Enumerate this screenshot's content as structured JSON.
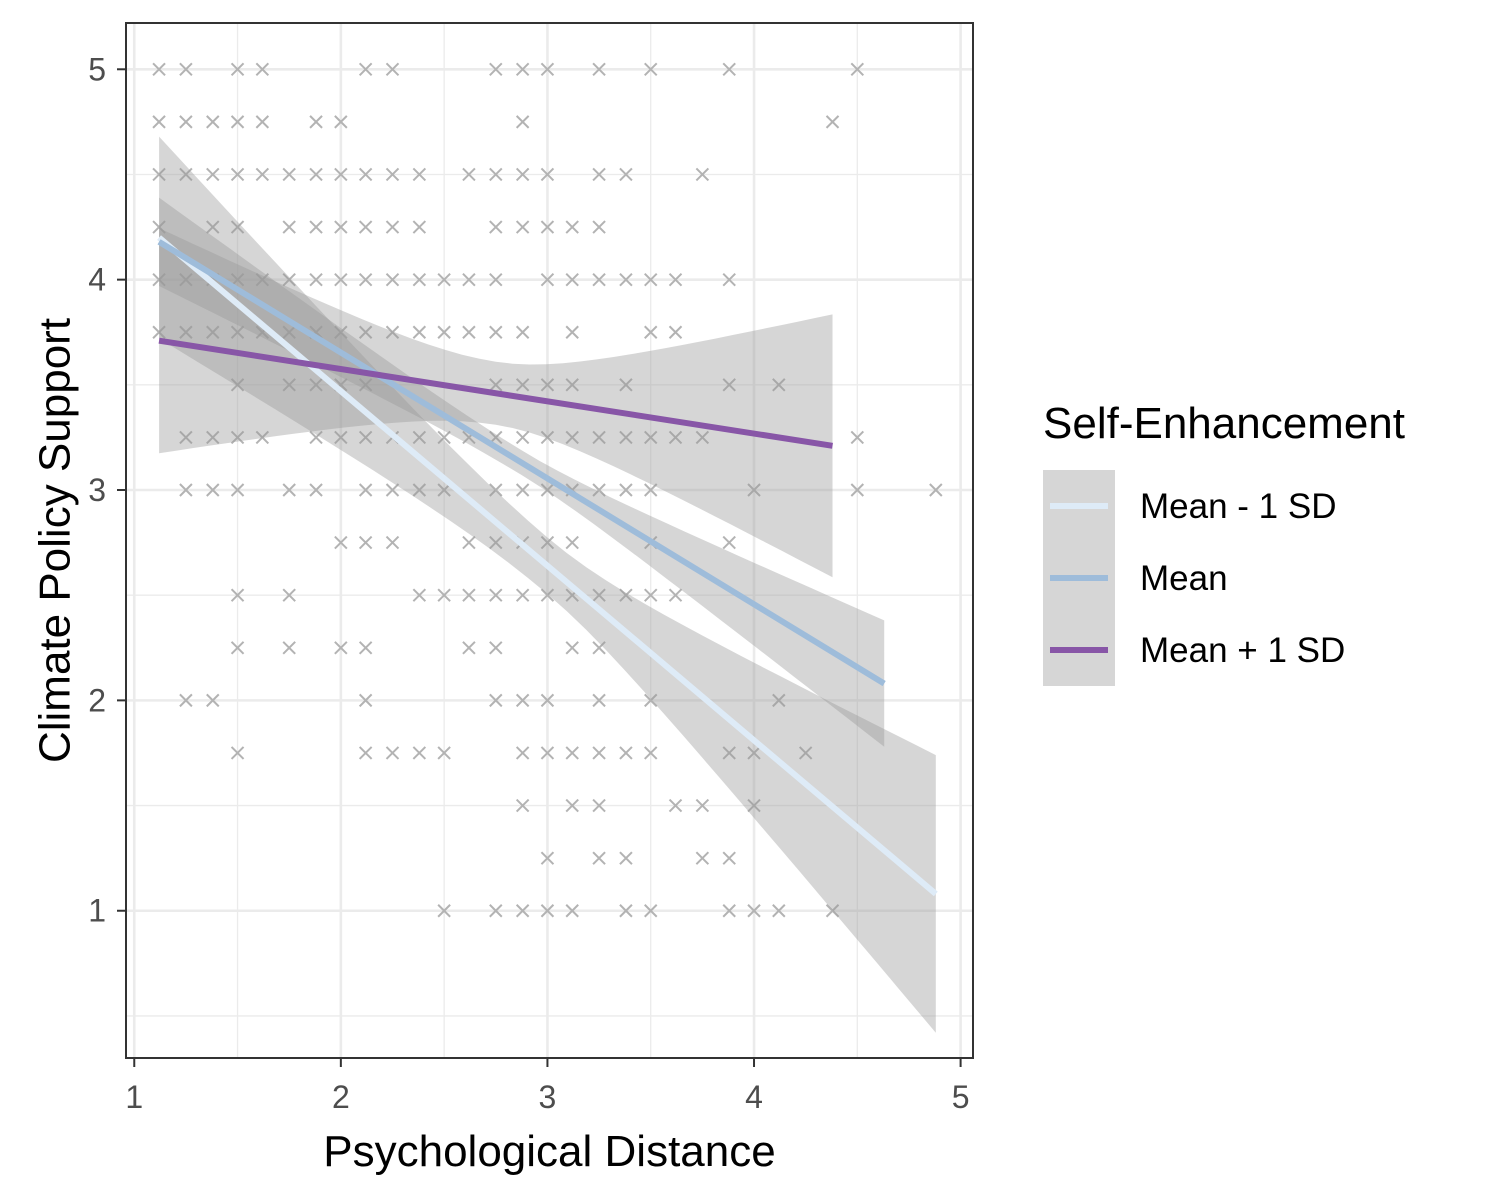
{
  "chart_data": {
    "type": "scatter",
    "title": "",
    "xlabel": "Psychological Distance",
    "ylabel": "Climate Policy Support",
    "xlim": [
      0.96,
      5.06
    ],
    "ylim": [
      0.3,
      5.22
    ],
    "x_ticks": [
      1,
      2,
      3,
      4,
      5
    ],
    "y_ticks": [
      1,
      2,
      3,
      4,
      5
    ],
    "x_tick_labels": [
      "1",
      "2",
      "3",
      "4",
      "5"
    ],
    "y_tick_labels": [
      "1",
      "2",
      "3",
      "4",
      "5"
    ],
    "grid": true,
    "point_marker": "x",
    "point_color": "#b3b3b3",
    "ribbon_color": "#999999",
    "legend": {
      "title": "Self-Enhancement",
      "position": "right"
    },
    "series": [
      {
        "name": "Mean - 1 SD",
        "color": "#deebf7",
        "x": [
          1.12,
          4.88
        ],
        "y": [
          4.2,
          1.08
        ],
        "ci_lower": [
          3.72,
          0.42
        ],
        "ci_upper": [
          4.68,
          1.74
        ]
      },
      {
        "name": "Mean",
        "color": "#9ebcda",
        "x": [
          1.12,
          4.63
        ],
        "y": [
          4.18,
          2.08
        ],
        "ci_lower": [
          3.98,
          1.78
        ],
        "ci_upper": [
          4.4,
          2.38
        ]
      },
      {
        "name": "Mean + 1 SD",
        "color": "#8856a7",
        "x": [
          1.12,
          4.38
        ],
        "y": [
          3.71,
          3.21
        ],
        "ci_lower": [
          3.18,
          2.59
        ],
        "ci_upper": [
          4.25,
          3.84
        ]
      }
    ],
    "points": [
      [
        1.12,
        5
      ],
      [
        1.25,
        5
      ],
      [
        1.5,
        5
      ],
      [
        1.62,
        5
      ],
      [
        2.12,
        5
      ],
      [
        2.25,
        5
      ],
      [
        2.75,
        5
      ],
      [
        2.88,
        5
      ],
      [
        3,
        5
      ],
      [
        3.25,
        5
      ],
      [
        3.5,
        5
      ],
      [
        3.88,
        5
      ],
      [
        4.5,
        5
      ],
      [
        1.12,
        4.75
      ],
      [
        1.25,
        4.75
      ],
      [
        1.38,
        4.75
      ],
      [
        1.5,
        4.75
      ],
      [
        1.62,
        4.75
      ],
      [
        1.88,
        4.75
      ],
      [
        2,
        4.75
      ],
      [
        2.88,
        4.75
      ],
      [
        4.38,
        4.75
      ],
      [
        1.12,
        4.5
      ],
      [
        1.25,
        4.5
      ],
      [
        1.38,
        4.5
      ],
      [
        1.5,
        4.5
      ],
      [
        1.62,
        4.5
      ],
      [
        1.75,
        4.5
      ],
      [
        1.88,
        4.5
      ],
      [
        2,
        4.5
      ],
      [
        2.12,
        4.5
      ],
      [
        2.25,
        4.5
      ],
      [
        2.38,
        4.5
      ],
      [
        2.62,
        4.5
      ],
      [
        2.75,
        4.5
      ],
      [
        2.88,
        4.5
      ],
      [
        3,
        4.5
      ],
      [
        3.25,
        4.5
      ],
      [
        3.38,
        4.5
      ],
      [
        3.75,
        4.5
      ],
      [
        1.12,
        4.25
      ],
      [
        1.38,
        4.25
      ],
      [
        1.5,
        4.25
      ],
      [
        1.75,
        4.25
      ],
      [
        1.88,
        4.25
      ],
      [
        2,
        4.25
      ],
      [
        2.12,
        4.25
      ],
      [
        2.25,
        4.25
      ],
      [
        2.38,
        4.25
      ],
      [
        2.75,
        4.25
      ],
      [
        2.88,
        4.25
      ],
      [
        3,
        4.25
      ],
      [
        3.12,
        4.25
      ],
      [
        3.25,
        4.25
      ],
      [
        1.12,
        4
      ],
      [
        1.25,
        4
      ],
      [
        1.38,
        4
      ],
      [
        1.5,
        4
      ],
      [
        1.62,
        4
      ],
      [
        1.75,
        4
      ],
      [
        1.88,
        4
      ],
      [
        2,
        4
      ],
      [
        2.12,
        4
      ],
      [
        2.25,
        4
      ],
      [
        2.38,
        4
      ],
      [
        2.5,
        4
      ],
      [
        2.62,
        4
      ],
      [
        2.75,
        4
      ],
      [
        3,
        4
      ],
      [
        3.12,
        4
      ],
      [
        3.25,
        4
      ],
      [
        3.38,
        4
      ],
      [
        3.5,
        4
      ],
      [
        3.62,
        4
      ],
      [
        3.88,
        4
      ],
      [
        1.12,
        3.75
      ],
      [
        1.25,
        3.75
      ],
      [
        1.38,
        3.75
      ],
      [
        1.5,
        3.75
      ],
      [
        1.62,
        3.75
      ],
      [
        1.75,
        3.75
      ],
      [
        1.88,
        3.75
      ],
      [
        2,
        3.75
      ],
      [
        2.12,
        3.75
      ],
      [
        2.25,
        3.75
      ],
      [
        2.38,
        3.75
      ],
      [
        2.5,
        3.75
      ],
      [
        2.62,
        3.75
      ],
      [
        2.75,
        3.75
      ],
      [
        2.88,
        3.75
      ],
      [
        3.12,
        3.75
      ],
      [
        3.5,
        3.75
      ],
      [
        3.62,
        3.75
      ],
      [
        1.5,
        3.5
      ],
      [
        1.75,
        3.5
      ],
      [
        1.88,
        3.5
      ],
      [
        2,
        3.5
      ],
      [
        2.12,
        3.5
      ],
      [
        2.75,
        3.5
      ],
      [
        2.88,
        3.5
      ],
      [
        3,
        3.5
      ],
      [
        3.12,
        3.5
      ],
      [
        3.38,
        3.5
      ],
      [
        3.88,
        3.5
      ],
      [
        4.12,
        3.5
      ],
      [
        1.25,
        3.25
      ],
      [
        1.38,
        3.25
      ],
      [
        1.5,
        3.25
      ],
      [
        1.62,
        3.25
      ],
      [
        1.88,
        3.25
      ],
      [
        2,
        3.25
      ],
      [
        2.12,
        3.25
      ],
      [
        2.25,
        3.25
      ],
      [
        2.38,
        3.25
      ],
      [
        2.5,
        3.25
      ],
      [
        2.62,
        3.25
      ],
      [
        2.75,
        3.25
      ],
      [
        2.88,
        3.25
      ],
      [
        3,
        3.25
      ],
      [
        3.12,
        3.25
      ],
      [
        3.25,
        3.25
      ],
      [
        3.38,
        3.25
      ],
      [
        3.5,
        3.25
      ],
      [
        3.62,
        3.25
      ],
      [
        3.75,
        3.25
      ],
      [
        4.5,
        3.25
      ],
      [
        1.25,
        3
      ],
      [
        1.38,
        3
      ],
      [
        1.5,
        3
      ],
      [
        1.75,
        3
      ],
      [
        1.88,
        3
      ],
      [
        2.12,
        3
      ],
      [
        2.25,
        3
      ],
      [
        2.38,
        3
      ],
      [
        2.5,
        3
      ],
      [
        2.75,
        3
      ],
      [
        2.88,
        3
      ],
      [
        3,
        3
      ],
      [
        3.12,
        3
      ],
      [
        3.25,
        3
      ],
      [
        3.38,
        3
      ],
      [
        3.5,
        3
      ],
      [
        4,
        3
      ],
      [
        4.5,
        3
      ],
      [
        4.88,
        3
      ],
      [
        2,
        2.75
      ],
      [
        2.12,
        2.75
      ],
      [
        2.25,
        2.75
      ],
      [
        2.62,
        2.75
      ],
      [
        2.75,
        2.75
      ],
      [
        2.88,
        2.75
      ],
      [
        3,
        2.75
      ],
      [
        3.12,
        2.75
      ],
      [
        3.5,
        2.75
      ],
      [
        3.88,
        2.75
      ],
      [
        1.5,
        2.5
      ],
      [
        1.75,
        2.5
      ],
      [
        2.38,
        2.5
      ],
      [
        2.5,
        2.5
      ],
      [
        2.62,
        2.5
      ],
      [
        2.75,
        2.5
      ],
      [
        2.88,
        2.5
      ],
      [
        3,
        2.5
      ],
      [
        3.12,
        2.5
      ],
      [
        3.25,
        2.5
      ],
      [
        3.38,
        2.5
      ],
      [
        3.5,
        2.5
      ],
      [
        3.62,
        2.5
      ],
      [
        1.5,
        2.25
      ],
      [
        1.75,
        2.25
      ],
      [
        2,
        2.25
      ],
      [
        2.12,
        2.25
      ],
      [
        2.62,
        2.25
      ],
      [
        2.75,
        2.25
      ],
      [
        3.12,
        2.25
      ],
      [
        3.25,
        2.25
      ],
      [
        1.25,
        2
      ],
      [
        1.38,
        2
      ],
      [
        2.12,
        2
      ],
      [
        2.75,
        2
      ],
      [
        2.88,
        2
      ],
      [
        3,
        2
      ],
      [
        3.25,
        2
      ],
      [
        3.5,
        2
      ],
      [
        4.12,
        2
      ],
      [
        1.5,
        1.75
      ],
      [
        2.12,
        1.75
      ],
      [
        2.25,
        1.75
      ],
      [
        2.38,
        1.75
      ],
      [
        2.5,
        1.75
      ],
      [
        2.88,
        1.75
      ],
      [
        3,
        1.75
      ],
      [
        3.12,
        1.75
      ],
      [
        3.25,
        1.75
      ],
      [
        3.38,
        1.75
      ],
      [
        3.5,
        1.75
      ],
      [
        3.88,
        1.75
      ],
      [
        4,
        1.75
      ],
      [
        4.25,
        1.75
      ],
      [
        2.88,
        1.5
      ],
      [
        3.12,
        1.5
      ],
      [
        3.25,
        1.5
      ],
      [
        3.62,
        1.5
      ],
      [
        3.75,
        1.5
      ],
      [
        4,
        1.5
      ],
      [
        3,
        1.25
      ],
      [
        3.25,
        1.25
      ],
      [
        3.38,
        1.25
      ],
      [
        3.75,
        1.25
      ],
      [
        3.88,
        1.25
      ],
      [
        2.5,
        1
      ],
      [
        2.75,
        1
      ],
      [
        2.88,
        1
      ],
      [
        3,
        1
      ],
      [
        3.12,
        1
      ],
      [
        3.38,
        1
      ],
      [
        3.5,
        1
      ],
      [
        3.88,
        1
      ],
      [
        4,
        1
      ],
      [
        4.12,
        1
      ],
      [
        4.38,
        1
      ]
    ]
  }
}
